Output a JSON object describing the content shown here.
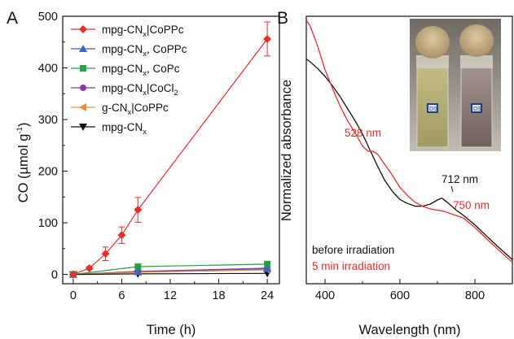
{
  "colors": {
    "mpg_CoPPc": "#e8302b",
    "mpg_CoPPc_mix": "#3a67c0",
    "mpg_CoPc": "#27a146",
    "mpg_CoCl2": "#8a3aa6",
    "g_CoPPc": "#f08a35",
    "mpg": "#111111",
    "curve_before": "#111111",
    "curve_after": "#e8302b"
  },
  "chart_data": [
    {
      "panel": "A",
      "type": "line",
      "xlabel": "Time (h)",
      "ylabel": "CO (µmol g⁻¹)",
      "xlim": [
        -1.3,
        25.5
      ],
      "ylim": [
        -18,
        500
      ],
      "xticks": [
        0,
        6,
        12,
        18,
        24
      ],
      "yticks": [
        0,
        100,
        200,
        300,
        400,
        500
      ],
      "series": [
        {
          "key": "mpg_CoPPc",
          "name": "mpg-CNx|CoPPc",
          "marker": "diamond",
          "x": [
            0,
            2,
            4,
            6,
            8,
            24
          ],
          "values": [
            0,
            12,
            40,
            76,
            125,
            456
          ],
          "err": [
            0,
            3,
            13,
            16,
            24,
            33
          ]
        },
        {
          "key": "mpg_CoPPc_mix",
          "name": "mpg-CNx, CoPPc",
          "marker": "triangle-up",
          "x": [
            0,
            8,
            24
          ],
          "values": [
            0,
            5,
            11
          ],
          "err": [
            0,
            0,
            0
          ]
        },
        {
          "key": "mpg_CoPc",
          "name": "mpg-CNx, CoPc",
          "marker": "square",
          "x": [
            0,
            8,
            24
          ],
          "values": [
            0,
            15,
            20
          ],
          "err": [
            0,
            0,
            0
          ]
        },
        {
          "key": "mpg_CoCl2",
          "name": "mpg-CNx|CoCl2",
          "marker": "circle",
          "x": [
            0,
            8,
            24
          ],
          "values": [
            0,
            6,
            12
          ],
          "err": [
            0,
            0,
            0
          ]
        },
        {
          "key": "g_CoPPc",
          "name": "g-CNx|CoPPc",
          "marker": "triangle-left",
          "x": [
            0,
            8,
            24
          ],
          "values": [
            0,
            4,
            9
          ],
          "err": [
            0,
            0,
            0
          ]
        },
        {
          "key": "mpg",
          "name": "mpg-CNx",
          "marker": "triangle-down",
          "x": [
            0,
            8,
            24
          ],
          "values": [
            0,
            1,
            2
          ],
          "err": [
            0,
            0,
            0
          ]
        }
      ]
    },
    {
      "panel": "B",
      "type": "line",
      "xlabel": "Wavelength (nm)",
      "ylabel": "Normalized absorbance",
      "xlim": [
        350,
        900
      ],
      "ylim": [
        0,
        1
      ],
      "xticks": [
        400,
        600,
        800
      ],
      "series": [
        {
          "key": "curve_before",
          "name": "before irradiation",
          "x": [
            350,
            360,
            380,
            400,
            420,
            440,
            460,
            480,
            500,
            520,
            540,
            560,
            580,
            600,
            620,
            640,
            660,
            680,
            700,
            712,
            730,
            750,
            770,
            800,
            830,
            860,
            900
          ],
          "values": [
            0.84,
            0.83,
            0.805,
            0.775,
            0.74,
            0.7,
            0.655,
            0.61,
            0.56,
            0.5,
            0.44,
            0.385,
            0.345,
            0.315,
            0.3,
            0.29,
            0.29,
            0.297,
            0.313,
            0.32,
            0.3,
            0.275,
            0.255,
            0.22,
            0.18,
            0.14,
            0.09
          ]
        },
        {
          "key": "curve_after",
          "name": "5 min irradiation",
          "x": [
            350,
            360,
            380,
            400,
            420,
            440,
            460,
            480,
            500,
            515,
            528,
            540,
            560,
            580,
            600,
            620,
            640,
            660,
            680,
            700,
            720,
            735,
            750,
            770,
            800,
            830,
            860,
            900
          ],
          "values": [
            0.985,
            0.965,
            0.89,
            0.8,
            0.73,
            0.665,
            0.61,
            0.565,
            0.515,
            0.495,
            0.495,
            0.485,
            0.445,
            0.405,
            0.36,
            0.33,
            0.305,
            0.29,
            0.28,
            0.275,
            0.27,
            0.262,
            0.255,
            0.245,
            0.21,
            0.17,
            0.13,
            0.08
          ]
        }
      ],
      "annotations": [
        "528 nm",
        "712 nm",
        "750 nm"
      ]
    }
  ],
  "figure": {
    "panelA": {
      "letter": "A",
      "xlabel": "Time (h)",
      "ylabel_main": "CO (",
      "ylabel_mu": "µ",
      "ylabel_mid": "mol g",
      "ylabel_sup": "-1",
      "ylabel_end": ")"
    },
    "panelB": {
      "letter": "B",
      "xlabel": "Wavelength (nm)",
      "ylabel": "Normalized absorbance",
      "note_before": "before irradiation",
      "note_after": "5 min irradiation",
      "ann_528": "528 nm",
      "ann_712": "712 nm",
      "ann_750": "750 nm"
    },
    "legend": [
      {
        "key": "mpg_CoPPc",
        "main": "mpg-CN",
        "sub": "x",
        "rest": "|CoPPc",
        "sub2": "",
        "marker": "diamond"
      },
      {
        "key": "mpg_CoPPc_mix",
        "main": "mpg-CN",
        "sub": "x",
        "rest": ", CoPPc",
        "sub2": "",
        "marker": "triangle-up"
      },
      {
        "key": "mpg_CoPc",
        "main": "mpg-CN",
        "sub": "x",
        "rest": ", CoPc",
        "sub2": "",
        "marker": "square"
      },
      {
        "key": "mpg_CoCl2",
        "main": "mpg-CN",
        "sub": "x",
        "rest": "|CoCl",
        "sub2": "2",
        "marker": "circle"
      },
      {
        "key": "g_CoPPc",
        "main": "g-CN",
        "sub": "x",
        "rest": "|CoPPc",
        "sub2": "",
        "marker": "triangle-left"
      },
      {
        "key": "mpg",
        "main": "mpg-CN",
        "sub": "x",
        "rest": "",
        "sub2": "",
        "marker": "triangle-down"
      }
    ],
    "vial_labels": [
      "DS",
      "DS"
    ]
  }
}
